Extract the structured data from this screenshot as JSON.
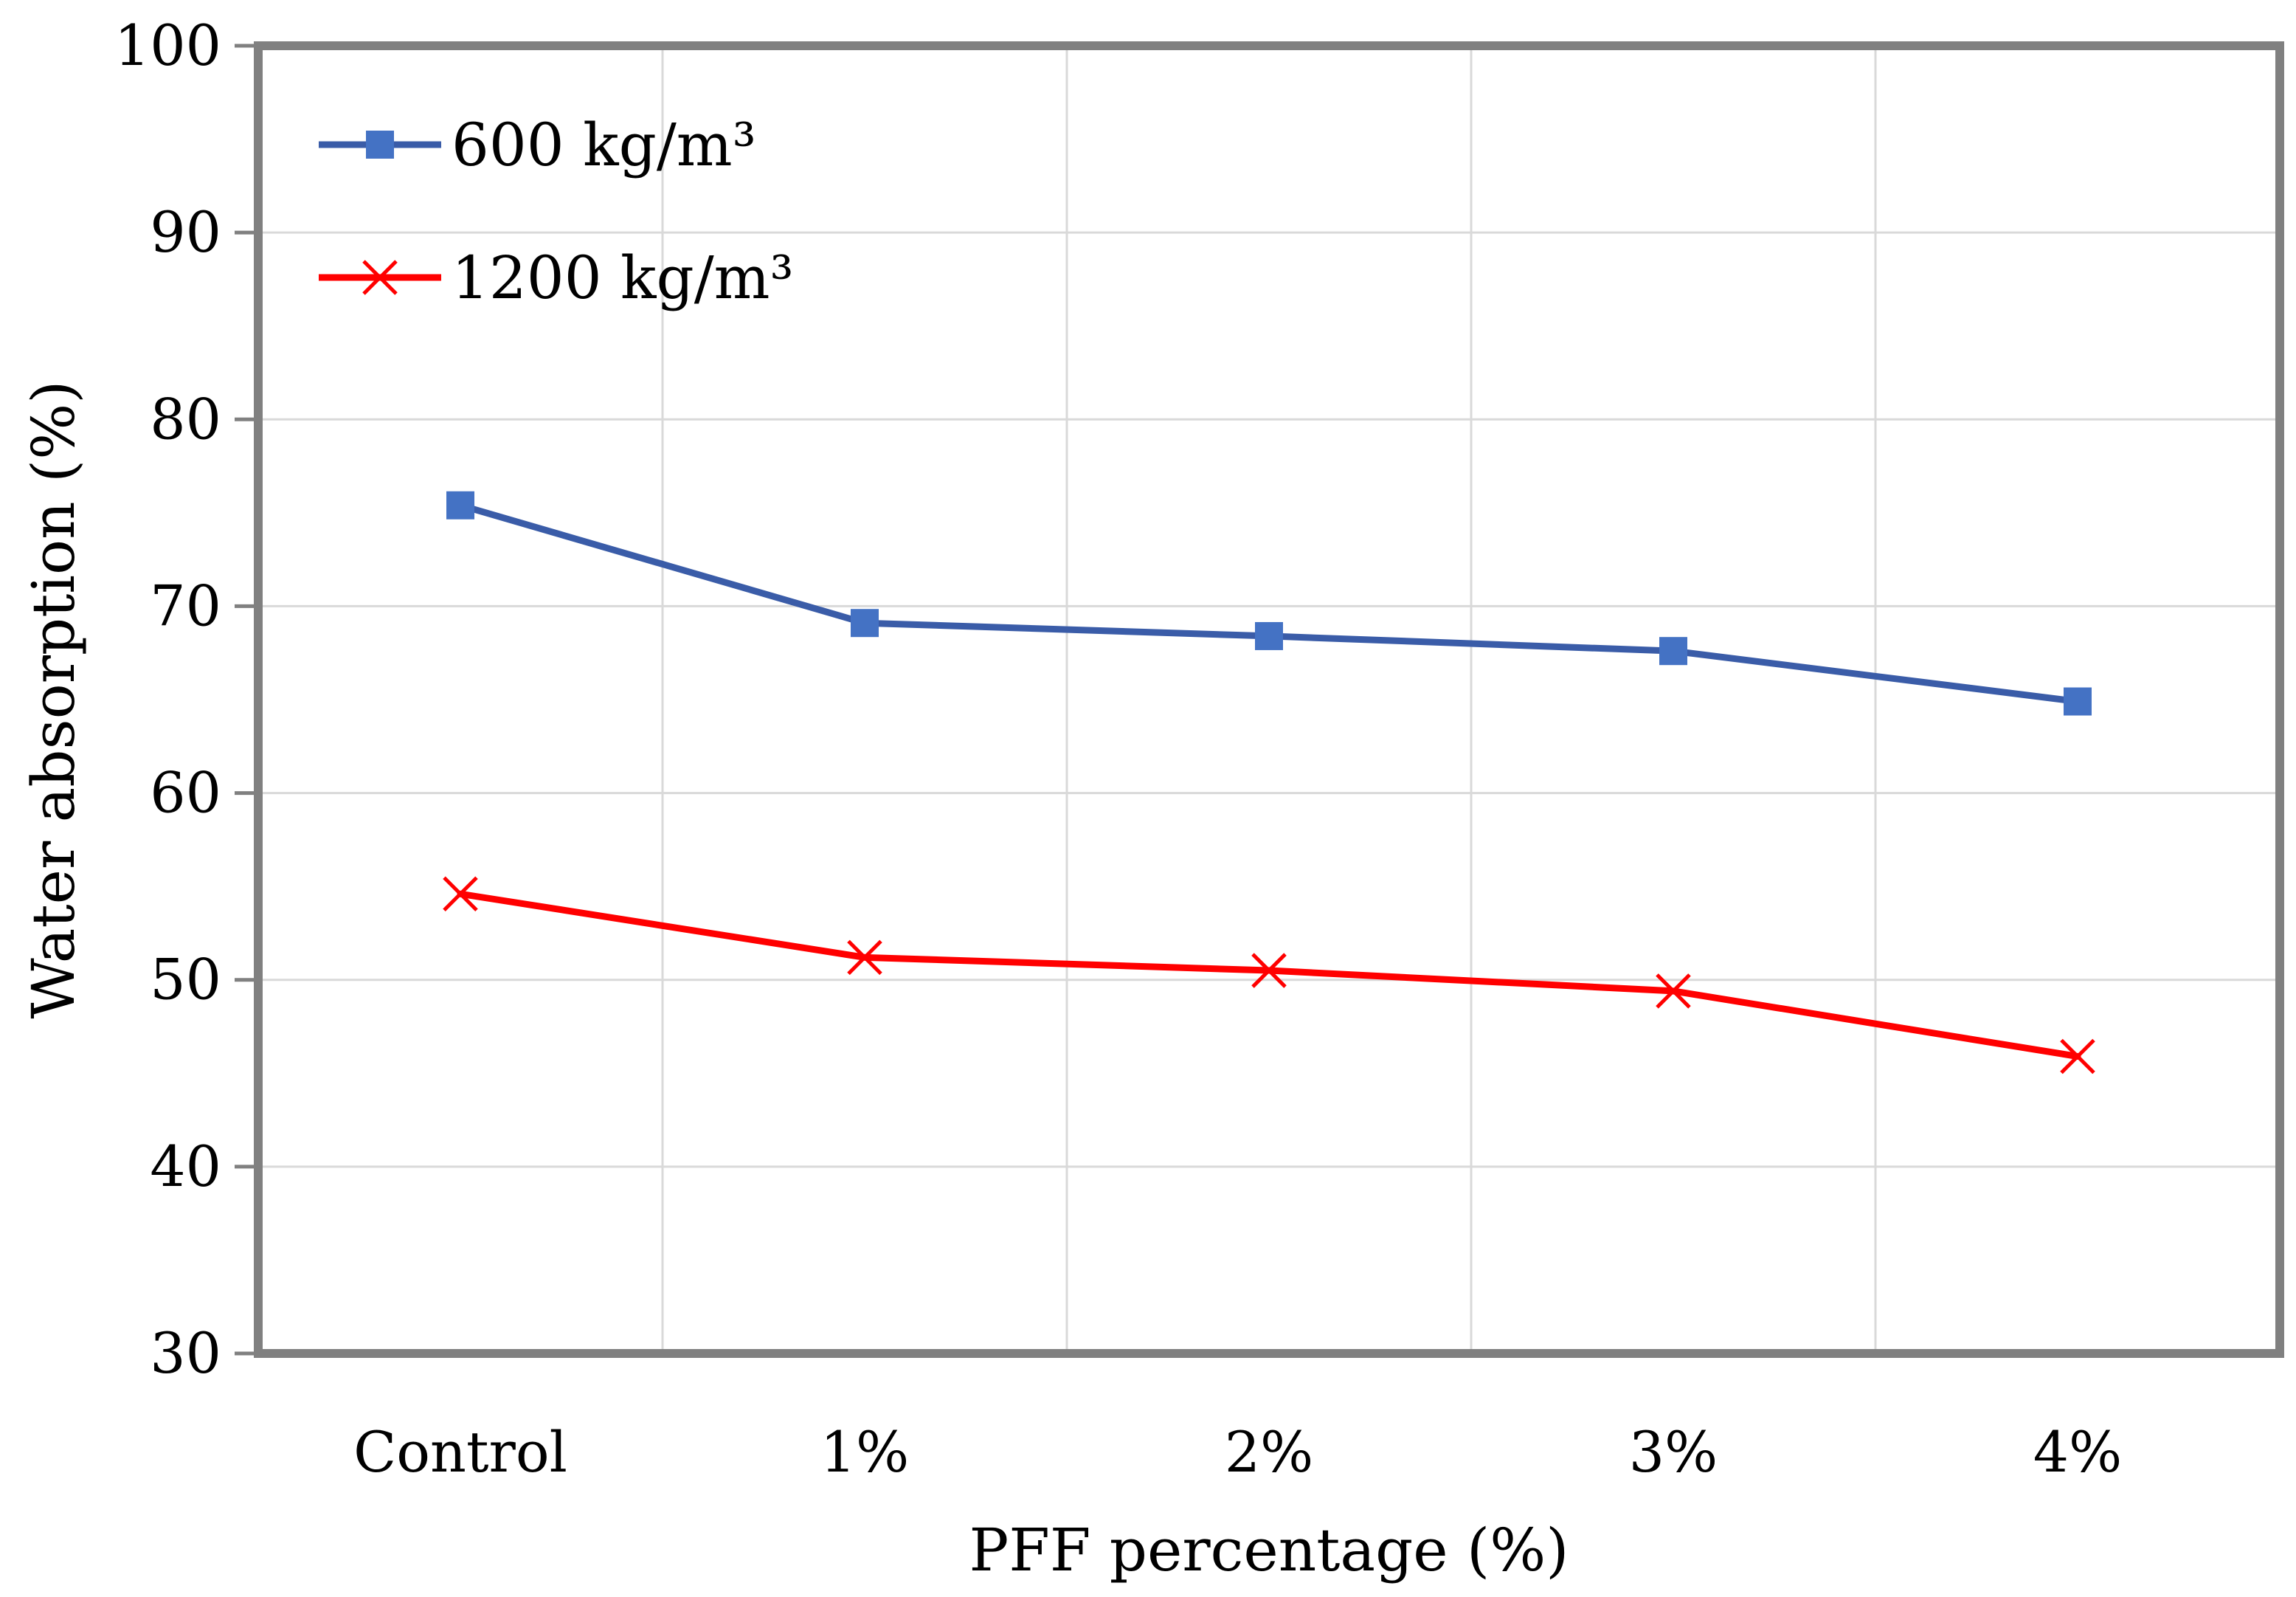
{
  "chart_data": {
    "type": "line",
    "title": "",
    "xlabel": "PFF percentage (%)",
    "ylabel": "Water absorption (%)",
    "ylim": [
      30,
      100
    ],
    "yticks": [
      "30",
      "40",
      "50",
      "60",
      "70",
      "80",
      "90",
      "100"
    ],
    "categories": [
      "Control",
      "1%",
      "2%",
      "3%",
      "4%"
    ],
    "grid": true,
    "legend_position": "top-left",
    "series": [
      {
        "name": "600 kg/m³",
        "color": "#3a5ca8",
        "marker": "square",
        "marker_color": "#4472c4",
        "values": [
          75.4,
          69.1,
          68.4,
          67.6,
          64.9
        ]
      },
      {
        "name": "1200 kg/m³",
        "color": "#ff0000",
        "marker": "x",
        "marker_color": "#ff0000",
        "values": [
          54.6,
          51.2,
          50.5,
          49.4,
          45.9
        ]
      }
    ]
  }
}
